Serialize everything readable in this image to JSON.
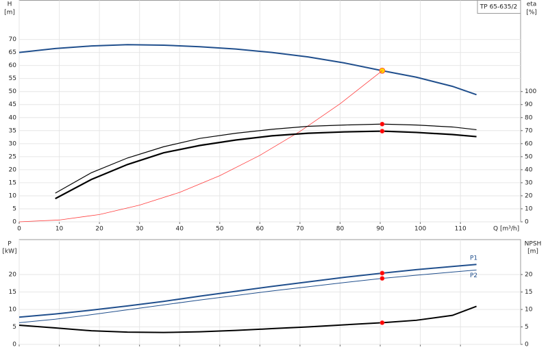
{
  "chart_data": [
    {
      "type": "line",
      "title": "TP 65-635/2",
      "y_label": "H",
      "y_unit": "[m]",
      "y2_label": "eta",
      "y2_unit": "[%]",
      "x_label": "Q [m³/h]",
      "xlim": [
        0,
        125
      ],
      "xticks": [
        0,
        10,
        20,
        30,
        40,
        50,
        60,
        70,
        80,
        90,
        100,
        110
      ],
      "ylim": [
        0,
        85
      ],
      "yticks": [
        0,
        5,
        10,
        15,
        20,
        25,
        30,
        35,
        40,
        45,
        50,
        55,
        60,
        65,
        70
      ],
      "y2lim": [
        0,
        170
      ],
      "y2ticks": [
        0,
        10,
        20,
        30,
        40,
        50,
        60,
        70,
        80,
        90,
        100
      ],
      "grid": true,
      "marker_x": 90.5,
      "series": [
        {
          "color": "#1f4e8c",
          "line_width": 2,
          "marker_color": "#ffd400",
          "x": [
            0,
            9,
            18,
            27,
            36,
            45,
            54,
            63,
            72,
            81,
            90.5,
            99,
            108,
            114
          ],
          "values": [
            65,
            66.5,
            67.5,
            68,
            67.8,
            67.2,
            66.3,
            65,
            63.3,
            61,
            58,
            55.5,
            52,
            48.8
          ]
        },
        {
          "color": "#ff3b3b",
          "line_width": 0.8,
          "x": [
            0,
            10,
            20,
            30,
            40,
            50,
            60,
            70,
            80,
            90,
            90.5
          ],
          "values": [
            0,
            0.7,
            2.8,
            6.4,
            11.3,
            17.7,
            25.5,
            34.7,
            45.3,
            57.4,
            58
          ]
        },
        {
          "color": "#000000",
          "line_width": 1.2,
          "axis": "y2",
          "marker_color": "#ff0000",
          "x": [
            9,
            18,
            27,
            36,
            45,
            54,
            63,
            72,
            81,
            90.5,
            99,
            108,
            114
          ],
          "values": [
            22,
            37.7,
            49,
            57.6,
            64,
            68,
            71,
            73.3,
            74.3,
            75,
            74.3,
            72.8,
            70.7
          ]
        },
        {
          "color": "#000000",
          "line_width": 2.2,
          "axis": "y2",
          "marker_color": "#ff0000",
          "x": [
            9,
            18,
            27,
            36,
            45,
            54,
            63,
            72,
            81,
            90.5,
            99,
            108,
            114
          ],
          "values": [
            17.8,
            32.5,
            44,
            53,
            58.6,
            62.8,
            66,
            68,
            69,
            69.6,
            68.6,
            67,
            65.4
          ]
        }
      ]
    },
    {
      "type": "line",
      "y_label": "P",
      "y_unit": "[kW]",
      "y2_label": "NPSH",
      "y2_unit": "[m]",
      "xlim": [
        0,
        125
      ],
      "xticks": [
        0,
        10,
        20,
        30,
        40,
        50,
        60,
        70,
        80,
        90,
        100,
        110
      ],
      "ylim": [
        0,
        30
      ],
      "yticks": [
        0,
        5,
        10,
        15,
        20
      ],
      "y2lim": [
        0,
        30
      ],
      "y2ticks": [
        0,
        5,
        10,
        15,
        20
      ],
      "grid": true,
      "marker_x": 90.5,
      "series": [
        {
          "name": "P1",
          "color": "#1f4e8c",
          "line_width": 2,
          "marker_color": "#ff0000",
          "x": [
            0,
            9,
            18,
            27,
            36,
            45,
            54,
            63,
            72,
            81,
            90.5,
            99,
            108,
            114
          ],
          "values": [
            7.8,
            8.7,
            9.8,
            11,
            12.3,
            13.8,
            15.2,
            16.6,
            17.9,
            19.2,
            20.4,
            21.4,
            22.3,
            22.9
          ]
        },
        {
          "name": "P2",
          "color": "#1f4e8c",
          "line_width": 1,
          "marker_color": "#ff0000",
          "x": [
            0,
            9,
            18,
            27,
            36,
            45,
            54,
            63,
            72,
            81,
            90.5,
            99,
            108,
            114
          ],
          "values": [
            6.2,
            7.2,
            8.5,
            9.9,
            11.3,
            12.7,
            14,
            15.3,
            16.5,
            17.7,
            18.9,
            19.8,
            20.7,
            21.3
          ]
        },
        {
          "color": "#000000",
          "line_width": 2,
          "axis": "y2",
          "marker_color": "#ff0000",
          "x": [
            0,
            9,
            18,
            27,
            36,
            45,
            54,
            63,
            72,
            81,
            90.5,
            99,
            108,
            114
          ],
          "values": [
            5.5,
            4.7,
            3.9,
            3.5,
            3.4,
            3.6,
            4,
            4.5,
            5,
            5.6,
            6.2,
            6.9,
            8.3,
            10.9
          ]
        }
      ]
    }
  ]
}
